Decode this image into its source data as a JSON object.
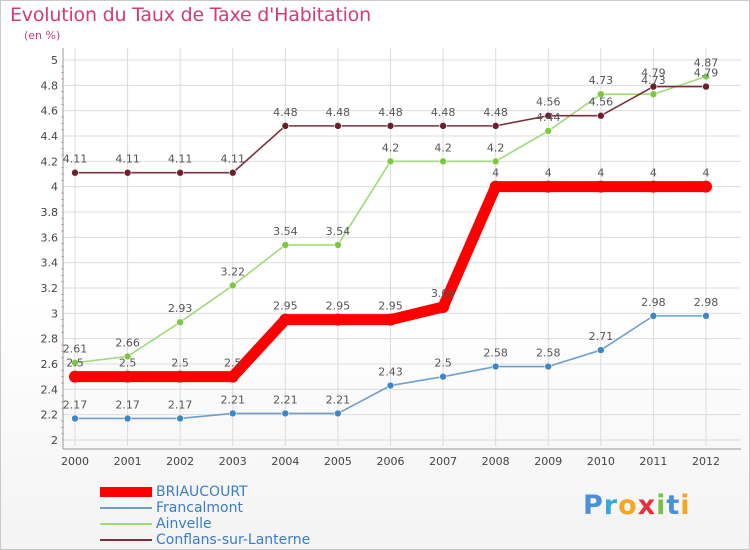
{
  "title": "Evolution du Taux de Taxe d'Habitation",
  "subtitle": "(en %)",
  "logo": {
    "letters": [
      "P",
      "r",
      "o",
      "x",
      "i",
      "t",
      "i"
    ],
    "colors": [
      "#4a90d9",
      "#3aa8d8",
      "#f5a623",
      "#e8303a",
      "#7ac143",
      "#4a90d9",
      "#f5a623"
    ]
  },
  "chart_data": {
    "type": "line",
    "x": [
      "2000",
      "2001",
      "2002",
      "2003",
      "2004",
      "2005",
      "2006",
      "2007",
      "2008",
      "2009",
      "2010",
      "2011",
      "2012"
    ],
    "ylim": [
      2,
      5
    ],
    "y_ticks": [
      "2",
      "2.2",
      "2.4",
      "2.6",
      "2.8",
      "3",
      "3.2",
      "3.4",
      "3.6",
      "3.8",
      "4",
      "4.2",
      "4.4",
      "4.6",
      "4.8",
      "5"
    ],
    "grid": true,
    "legend_position": "bottom-left",
    "series": [
      {
        "name": "BRIAUCOURT",
        "color": "#ff0000",
        "marker_color": "#ff0000",
        "label_color": "#555555",
        "values": [
          2.5,
          2.5,
          2.5,
          2.5,
          2.95,
          2.95,
          2.95,
          3.05,
          4,
          4,
          4,
          4,
          4
        ],
        "labels": [
          "2.5",
          "2.5",
          "2.5",
          "2.5",
          "2.95",
          "2.95",
          "2.95",
          "3.05",
          "4",
          "4",
          "4",
          "4",
          "4"
        ]
      },
      {
        "name": "Francalmont",
        "color": "#6e9fcc",
        "marker_color": "#3f86c8",
        "label_color": "#555555",
        "values": [
          2.17,
          2.17,
          2.17,
          2.21,
          2.21,
          2.21,
          2.43,
          2.5,
          2.58,
          2.58,
          2.71,
          2.98,
          2.98
        ],
        "labels": [
          "2.17",
          "2.17",
          "2.17",
          "2.21",
          "2.21",
          "2.21",
          "2.43",
          "2.5",
          "2.58",
          "2.58",
          "2.71",
          "2.98",
          "2.98"
        ]
      },
      {
        "name": "Ainvelle",
        "color": "#9fdb7a",
        "marker_color": "#7cc842",
        "label_color": "#555555",
        "values": [
          2.61,
          2.66,
          2.93,
          3.22,
          3.54,
          3.54,
          4.2,
          4.2,
          4.2,
          4.44,
          4.73,
          4.73,
          4.87
        ],
        "labels": [
          "2.61",
          "2.66",
          "2.93",
          "3.22",
          "3.54",
          "3.54",
          "4.2",
          "4.2",
          "4.2",
          "4.44",
          "4.73",
          "4.73",
          "4.87"
        ]
      },
      {
        "name": "Conflans-sur-Lanterne",
        "color": "#7a2f3c",
        "marker_color": "#6b1f2a",
        "label_color": "#555555",
        "values": [
          4.11,
          4.11,
          4.11,
          4.11,
          4.48,
          4.48,
          4.48,
          4.48,
          4.48,
          4.56,
          4.56,
          4.79,
          4.79
        ],
        "labels": [
          "4.11",
          "4.11",
          "4.11",
          "4.11",
          "4.48",
          "4.48",
          "4.48",
          "4.48",
          "4.48",
          "4.56",
          "4.56",
          "4.79",
          "4.79"
        ]
      }
    ]
  }
}
